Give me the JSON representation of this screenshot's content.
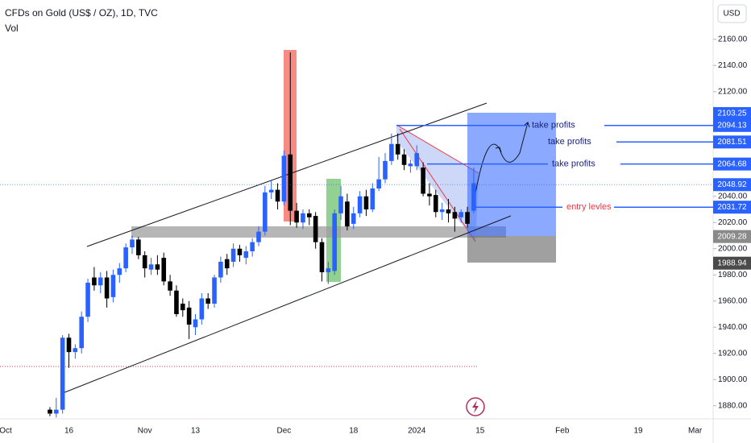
{
  "chart_data": {
    "type": "candlestick",
    "title": "CFDs on Gold (US$ / OZ), 1D, TVC",
    "subtitle": "Vol",
    "currency": "USD",
    "up_color": "#2962ff",
    "down_color": "#000000",
    "grid": false,
    "categories": [
      "Oct",
      null,
      null,
      null,
      null,
      null,
      null,
      null,
      null,
      null,
      "16",
      null,
      null,
      null,
      null,
      null,
      null,
      null,
      null,
      null,
      null,
      null,
      "Nov",
      null,
      null,
      null,
      null,
      null,
      null,
      null,
      "13",
      null,
      null,
      null,
      null,
      null,
      null,
      null,
      null,
      null,
      null,
      null,
      null,
      null,
      "Dec",
      null,
      null,
      null,
      null,
      null,
      null,
      null,
      null,
      null,
      null,
      "18",
      null,
      null,
      null,
      null,
      null,
      null,
      null,
      null,
      null,
      "2024",
      null,
      null,
      null,
      null,
      null,
      null,
      null,
      null,
      null,
      "15",
      null,
      null,
      null,
      null,
      null,
      null,
      null,
      null,
      null,
      null,
      null,
      null,
      "Feb",
      null,
      null,
      null,
      null,
      null,
      null,
      null,
      null,
      null,
      null,
      null,
      "19",
      null,
      null,
      null,
      null,
      null,
      null,
      null,
      null,
      "Mar",
      null,
      null
    ],
    "open": [
      null,
      null,
      null,
      null,
      null,
      null,
      null,
      1877,
      1874,
      1877,
      1932,
      1921,
      1924,
      1948,
      1978,
      1972,
      1978,
      1963,
      1980,
      1985,
      2001,
      2007,
      1995,
      1984,
      1988,
      1993,
      1975,
      1968,
      1958,
      1955,
      1940,
      1946,
      1962,
      1958,
      1978,
      1992,
      1990,
      2000,
      1993,
      1998,
      2005,
      2013,
      2043,
      2045,
      2036,
      2072,
      2029,
      2020,
      2027,
      2025,
      2005,
      1982,
      1983,
      2027,
      2036,
      2019,
      2027,
      2040,
      2030,
      2046,
      2053,
      2067,
      2080,
      2072,
      2063,
      2063,
      2062,
      2042,
      2041,
      2028,
      2030,
      2028,
      2024,
      2028,
      2029,
      null,
      null,
      null,
      null,
      null,
      null,
      null,
      null,
      null,
      null,
      null,
      null,
      null,
      null,
      null,
      null,
      null,
      null,
      null,
      null,
      null,
      null,
      null,
      null,
      null,
      null,
      null,
      null,
      null,
      null,
      null,
      null,
      null,
      null,
      null,
      null,
      null
    ],
    "high": [
      null,
      null,
      null,
      null,
      null,
      null,
      null,
      1879,
      1886,
      1934,
      1935,
      1927,
      1952,
      1977,
      1986,
      1982,
      1983,
      1984,
      1989,
      2004,
      2010,
      2009,
      1998,
      1993,
      1995,
      1997,
      1980,
      1972,
      1962,
      1960,
      1950,
      1966,
      1966,
      1980,
      1994,
      1996,
      2004,
      2003,
      2002,
      2008,
      2017,
      2048,
      2052,
      2050,
      2075,
      2150,
      2035,
      2030,
      2030,
      2028,
      2008,
      1990,
      2030,
      2048,
      2042,
      2032,
      2044,
      2045,
      2050,
      2070,
      2073,
      2088,
      2088,
      2076,
      2068,
      2079,
      2066,
      2050,
      2045,
      2035,
      2038,
      2032,
      2030,
      2032,
      2062,
      null,
      null,
      null,
      null,
      null,
      null,
      null,
      null,
      null,
      null,
      null,
      null,
      null,
      null,
      null,
      null,
      null,
      null,
      null,
      null,
      null,
      null,
      null,
      null,
      null,
      null,
      null,
      null,
      null,
      null,
      null,
      null,
      null,
      null,
      null,
      null,
      null
    ],
    "low": [
      null,
      null,
      null,
      null,
      null,
      null,
      null,
      1872,
      1871,
      1874,
      1909,
      1916,
      1920,
      1944,
      1968,
      1966,
      1955,
      1959,
      1974,
      1982,
      1996,
      1992,
      1978,
      1980,
      1980,
      1972,
      1964,
      1948,
      1948,
      1931,
      1934,
      1942,
      1954,
      1955,
      1974,
      1980,
      1986,
      1990,
      1988,
      1994,
      2002,
      2010,
      2038,
      2030,
      2033,
      2018,
      2016,
      2015,
      2018,
      2000,
      1975,
      1973,
      1980,
      2022,
      2014,
      2015,
      2024,
      2025,
      2028,
      2044,
      2050,
      2064,
      2068,
      2060,
      2058,
      2060,
      2040,
      2033,
      2024,
      2022,
      2020,
      2013,
      2020,
      2016,
      2027,
      null,
      null,
      null,
      null,
      null,
      null,
      null,
      null,
      null,
      null,
      null,
      null,
      null,
      null,
      null,
      null,
      null,
      null,
      null,
      null,
      null,
      null,
      null,
      null,
      null,
      null,
      null,
      null,
      null,
      null,
      null,
      null,
      null,
      null,
      null,
      null,
      null
    ],
    "close": [
      null,
      null,
      null,
      null,
      null,
      null,
      null,
      1874,
      1877,
      1932,
      1921,
      1924,
      1948,
      1974,
      1972,
      1978,
      1962,
      1980,
      1985,
      2001,
      2007,
      1995,
      1985,
      1988,
      1984,
      1975,
      1968,
      1950,
      1953,
      1942,
      1946,
      1962,
      1958,
      1978,
      1990,
      1985,
      2000,
      1995,
      1998,
      2005,
      2013,
      2043,
      2045,
      2036,
      2071,
      2029,
      2020,
      2027,
      2024,
      2005,
      1982,
      1985,
      2027,
      2040,
      2017,
      2027,
      2040,
      2030,
      2046,
      2053,
      2067,
      2080,
      2072,
      2064,
      2065,
      2073,
      2042,
      2040,
      2028,
      2030,
      2027,
      2023,
      2028,
      2019,
      2050,
      null,
      null,
      null,
      null,
      null,
      null,
      null,
      null,
      null,
      null,
      null,
      null,
      null,
      null,
      null,
      null,
      null,
      null,
      null,
      null,
      null,
      null,
      null,
      null,
      null,
      null,
      null,
      null,
      null,
      null,
      null,
      null,
      null,
      null,
      null,
      null,
      null
    ],
    "ylim": [
      1870,
      2190
    ],
    "yticks": [
      {
        "value": 1880,
        "label": "1880.00"
      },
      {
        "value": 1900,
        "label": "1900.00"
      },
      {
        "value": 1920,
        "label": "1920.00"
      },
      {
        "value": 1940,
        "label": "1940.00"
      },
      {
        "value": 1960,
        "label": "1960.00"
      },
      {
        "value": 1980,
        "label": "1980.00"
      },
      {
        "value": 2000,
        "label": "2000.00"
      },
      {
        "value": 2020,
        "label": "2020.00"
      },
      {
        "value": 2040,
        "label": "2040.00"
      },
      {
        "value": 2120,
        "label": "2120.00"
      },
      {
        "value": 2140,
        "label": "2140.00"
      },
      {
        "value": 2160,
        "label": "2160.00"
      }
    ],
    "levels": [
      {
        "text": "take profits",
        "value": 2094.13,
        "color": "#1a237e"
      },
      {
        "text": "take profits",
        "value": 2081.51,
        "color": "#1a237e"
      },
      {
        "text": "take profits",
        "value": 2064.68,
        "color": "#1a237e"
      },
      {
        "text": "entry levles",
        "value": 2031.72,
        "color": "#f23645"
      }
    ],
    "price_badges": [
      {
        "value": 2103.25,
        "color": "#2962ff"
      },
      {
        "value": 2048.92,
        "color": "#2962ff"
      },
      {
        "value": 2009.28,
        "color": "#8a8a8a"
      },
      {
        "value": 1988.94,
        "color": "#4a4a4a"
      }
    ]
  }
}
